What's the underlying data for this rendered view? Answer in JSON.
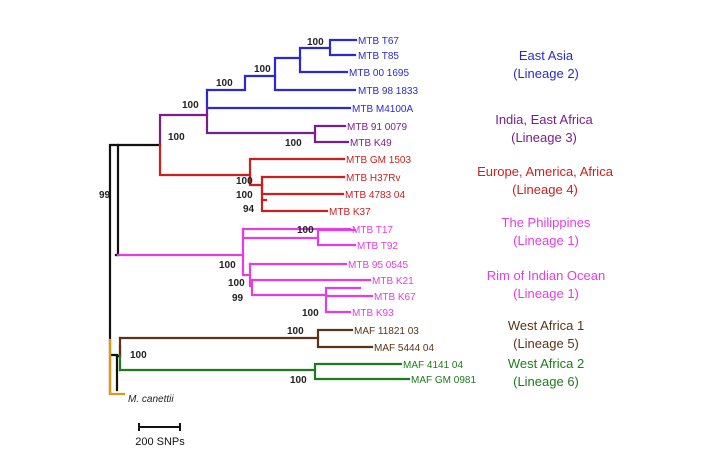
{
  "colors": {
    "lineage2": "#2a2ad0",
    "lineage3": "#7a1e8c",
    "lineage4": "#cc1f1f",
    "lineage1": "#e23ee2",
    "lineage5": "#5a3418",
    "lineage6": "#1f7a1f",
    "canettii": "#d99a1a",
    "backbone": "#111111",
    "text": "#222222"
  },
  "taxa": {
    "t67": "MTB T67",
    "t85": "MTB T85",
    "m001695": "MTB 00 1695",
    "m981833": "MTB 98 1833",
    "m4100a": "MTB M4100A",
    "m910079": "MTB 91 0079",
    "k49": "MTB K49",
    "gm1503": "MTB GM 1503",
    "h37rv": "MTB H37Rv",
    "m478304": "MTB 4783 04",
    "k37": "MTB K37",
    "t17": "MTB T17",
    "t92": "MTB T92",
    "m950545": "MTB 95 0545",
    "k21": "MTB K21",
    "k67": "MTB K67",
    "k93": "MTB K93",
    "maf1182103": "MAF 11821 03",
    "maf544404": "MAF 5444 04",
    "maf414104": "MAF 4141 04",
    "mafgm0981": "MAF GM 0981",
    "canettii": "M. canettii"
  },
  "bootstrap": {
    "n1": "100",
    "n2": "100",
    "n3": "100",
    "n4": "100",
    "n5": "100",
    "n6": "100",
    "n7": "100",
    "n8": "94",
    "n9": "99",
    "n10": "100",
    "n11": "100",
    "n12": "99",
    "n13": "100",
    "n14": "100",
    "n15": "100",
    "n16": "100"
  },
  "groups": {
    "eastasia_l1": "East Asia",
    "eastasia_l2": "(Lineage 2)",
    "india_l1": "India, East Africa",
    "india_l2": "(Lineage 3)",
    "europe_l1": "Europe, America, Africa",
    "europe_l2": "(Lineage 4)",
    "phil_l1": "The Philippines",
    "phil_l2": "(Lineage 1)",
    "rim_l1": "Rim of Indian Ocean",
    "rim_l2": "(Lineage 1)",
    "wa1_l1": "West Africa 1",
    "wa1_l2": "(Lineage 5)",
    "wa2_l1": "West Africa 2",
    "wa2_l2": "(Lineage 6)"
  },
  "scale": {
    "label": "200 SNPs"
  }
}
